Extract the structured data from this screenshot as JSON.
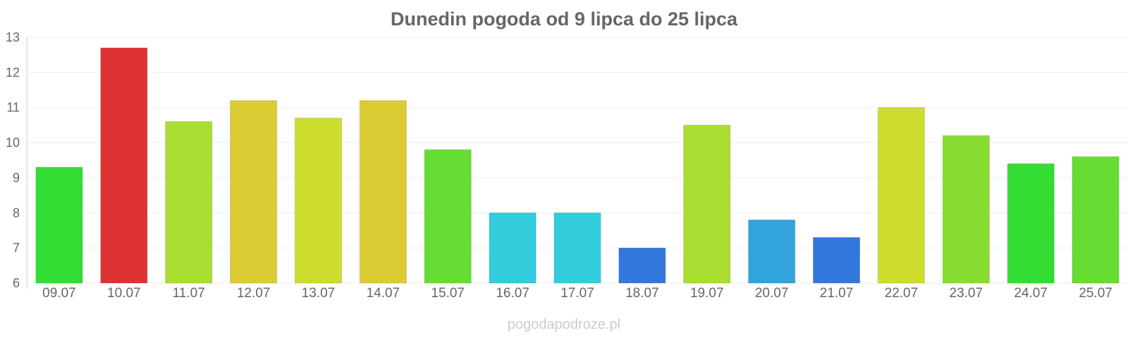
{
  "chart_data": {
    "type": "bar",
    "title": "Dunedin pogoda od 9 lipca do 25 lipca",
    "categories": [
      "09.07",
      "10.07",
      "11.07",
      "12.07",
      "13.07",
      "14.07",
      "15.07",
      "16.07",
      "17.07",
      "18.07",
      "19.07",
      "20.07",
      "21.07",
      "22.07",
      "23.07",
      "24.07",
      "25.07"
    ],
    "values": [
      9.3,
      12.7,
      10.6,
      11.2,
      10.7,
      11.2,
      9.8,
      8.0,
      8.0,
      7.0,
      10.5,
      7.8,
      7.3,
      11.0,
      10.2,
      9.4,
      9.6
    ],
    "colors": [
      "#33dd33",
      "#dd3333",
      "#aade33",
      "#dccc33",
      "#ccdd2e",
      "#dccc33",
      "#66dd33",
      "#33ccdd",
      "#33ccdd",
      "#3377dd",
      "#aade33",
      "#33a3dd",
      "#3377dd",
      "#ccdd2e",
      "#88dd33",
      "#33dd33",
      "#66dd33"
    ],
    "ylim": [
      6,
      13
    ],
    "yticks": [
      6,
      7,
      8,
      9,
      10,
      11,
      12,
      13
    ],
    "grid": true
  },
  "watermark": "pogodapodroze.pl"
}
